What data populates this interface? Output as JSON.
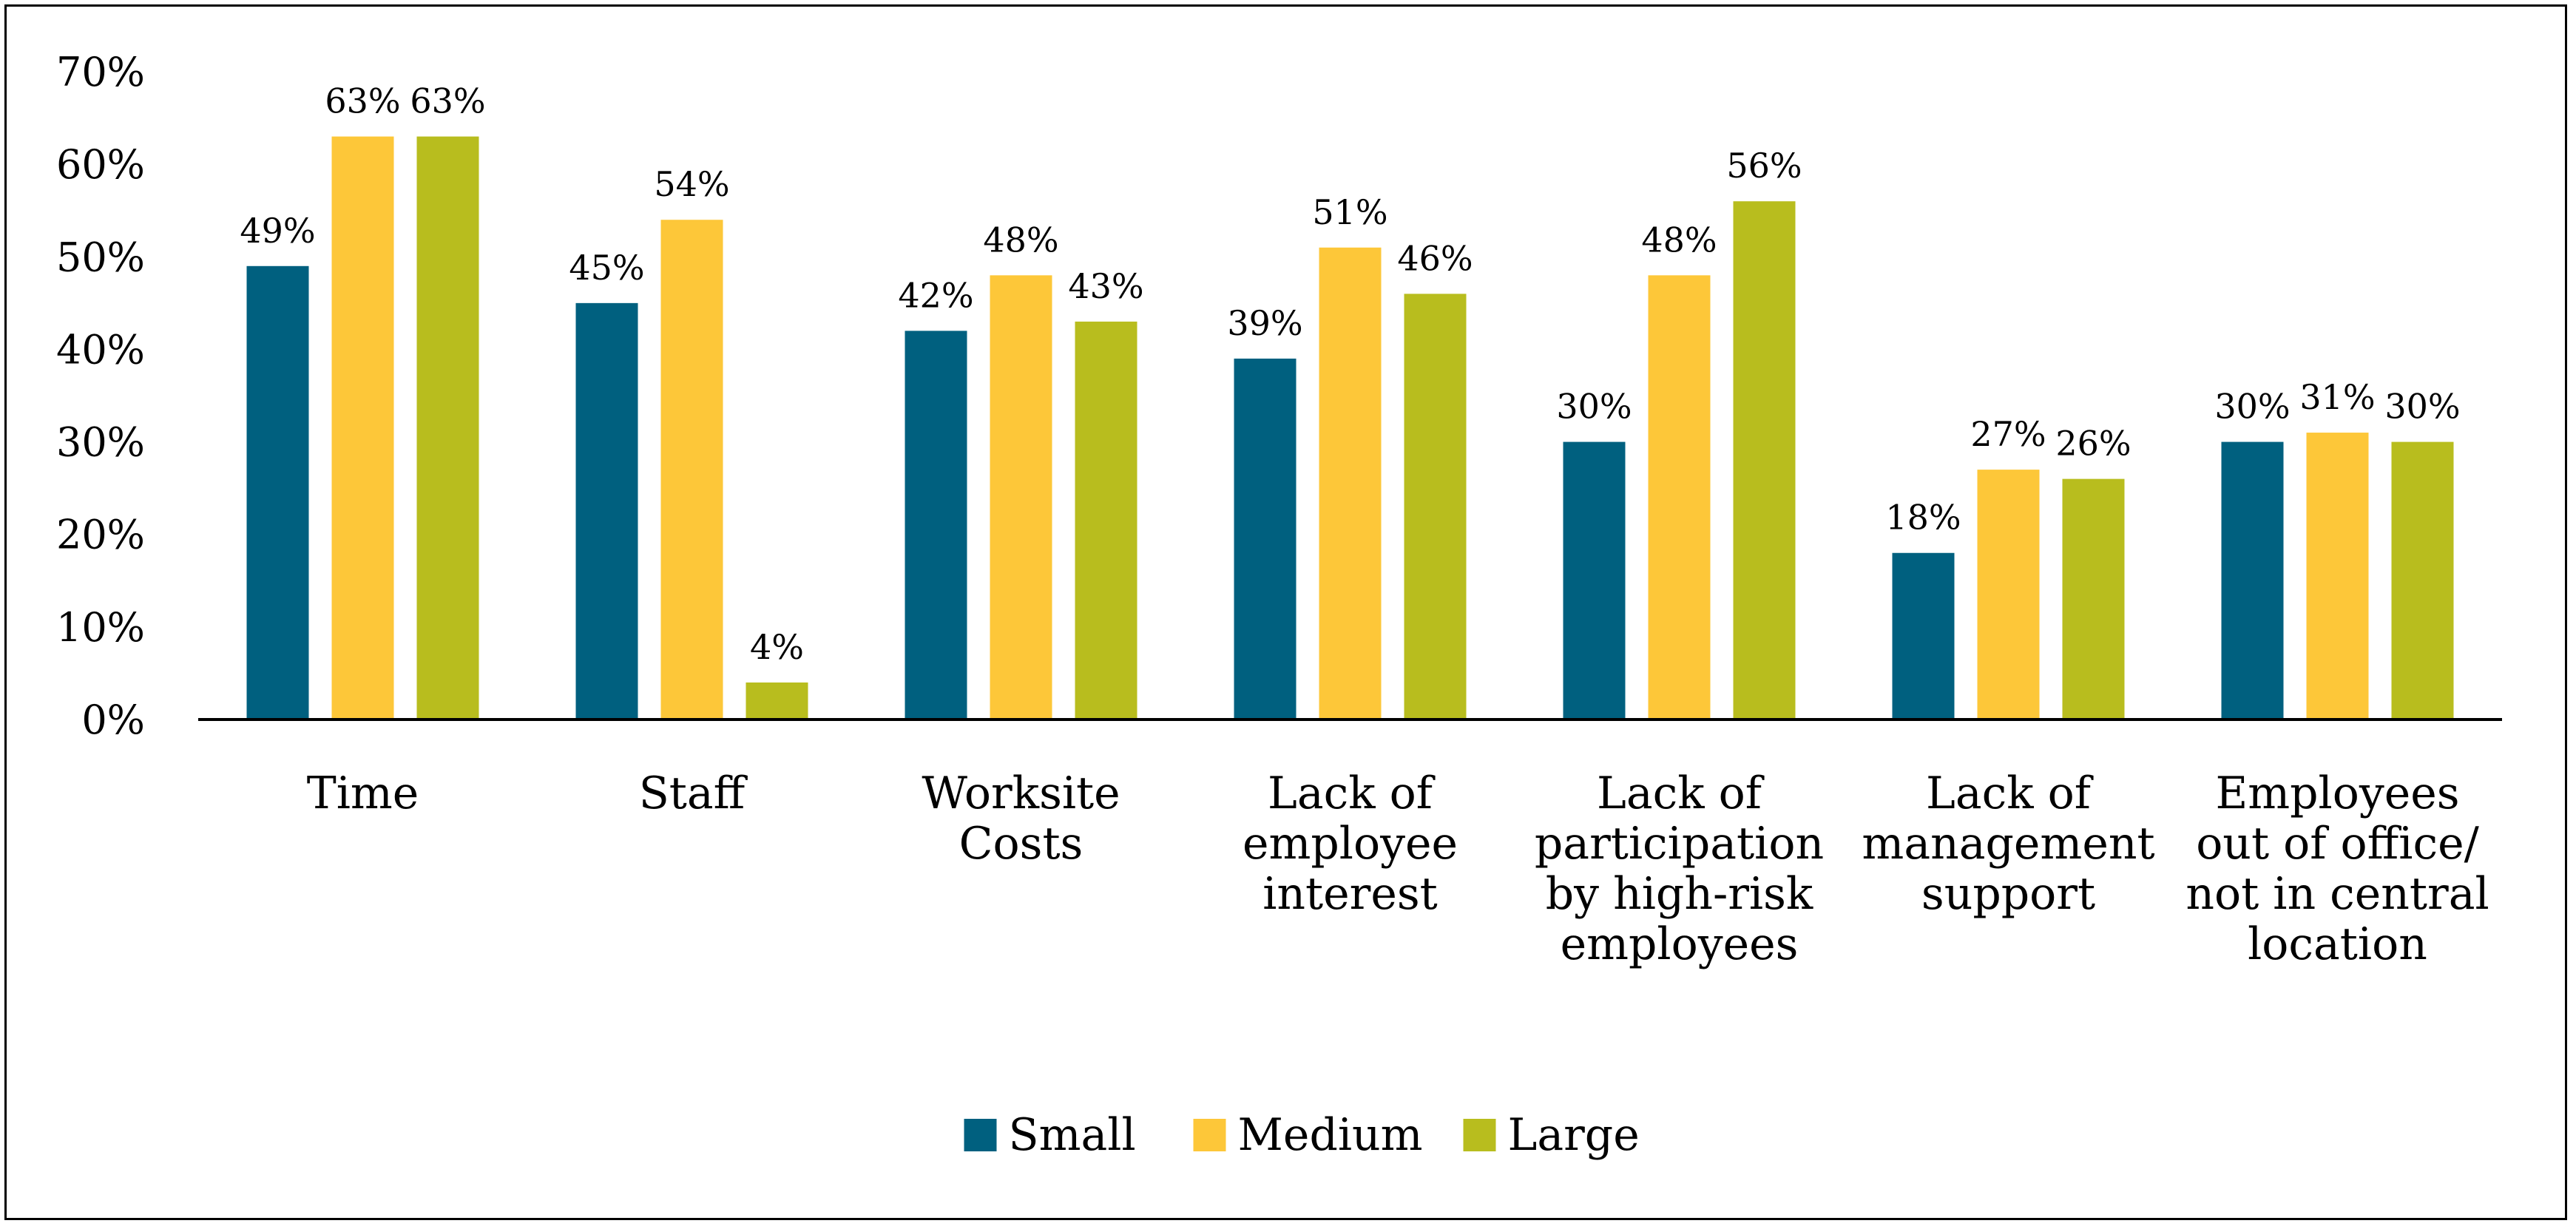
{
  "chart_data": {
    "type": "bar",
    "title": "",
    "xlabel": "",
    "ylabel": "",
    "ylim": [
      0,
      70
    ],
    "y_ticks": [
      "0%",
      "10%",
      "20%",
      "30%",
      "40%",
      "50%",
      "60%",
      "70%"
    ],
    "y_tick_values": [
      0,
      10,
      20,
      30,
      40,
      50,
      60,
      70
    ],
    "grid": false,
    "legend_position": "bottom-center",
    "categories": [
      [
        "Time"
      ],
      [
        "Staff"
      ],
      [
        "Worksite",
        "Costs"
      ],
      [
        "Lack of",
        "employee",
        "interest"
      ],
      [
        "Lack of",
        "participation",
        "by high-risk",
        "employees"
      ],
      [
        "Lack of",
        "management",
        "support"
      ],
      [
        "Employees",
        "out of office/",
        "not in central",
        "location"
      ]
    ],
    "series": [
      {
        "name": "Small",
        "color": "#00607f",
        "values": [
          49,
          45,
          42,
          39,
          30,
          18,
          30
        ],
        "labels": [
          "49%",
          "45%",
          "42%",
          "39%",
          "30%",
          "18%",
          "30%"
        ]
      },
      {
        "name": "Medium",
        "color": "#fdc739",
        "values": [
          63,
          54,
          48,
          51,
          48,
          27,
          31
        ],
        "labels": [
          "63%",
          "54%",
          "48%",
          "51%",
          "48%",
          "27%",
          "31%"
        ]
      },
      {
        "name": "Large",
        "color": "#b8bd1e",
        "values": [
          63,
          4,
          43,
          46,
          56,
          26,
          30
        ],
        "labels": [
          "63%",
          "4%",
          "43%",
          "46%",
          "56%",
          "26%",
          "30%"
        ]
      }
    ]
  }
}
